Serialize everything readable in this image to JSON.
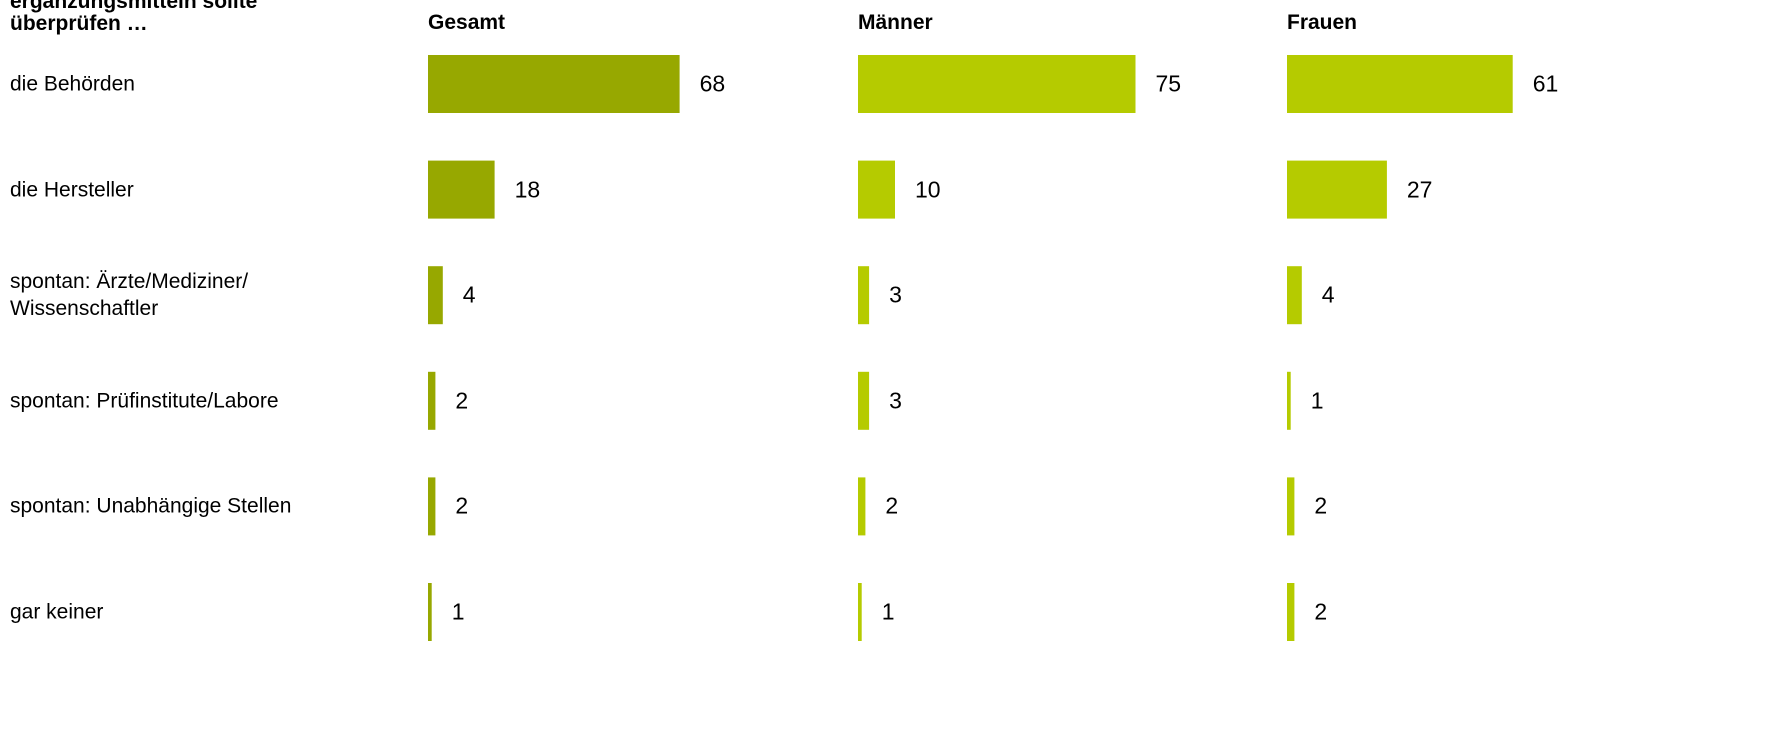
{
  "chart_data": {
    "type": "bar",
    "orientation": "horizontal",
    "title": "ergänzungsmitteln sollte\nüberprüfen …",
    "categories": [
      "die Behörden",
      "die Hersteller",
      "spontan: Ärzte/Mediziner/\nWissenschaftler",
      "spontan: Prüfinstitute/Labore",
      "spontan: Unabhängige Stellen",
      "gar keiner"
    ],
    "series": [
      {
        "name": "Gesamt",
        "color": "#97a800",
        "values": [
          68,
          18,
          4,
          2,
          2,
          1
        ]
      },
      {
        "name": "Männer",
        "color": "#b5cb00",
        "values": [
          75,
          10,
          3,
          3,
          2,
          1
        ]
      },
      {
        "name": "Frauen",
        "color": "#b5cb00",
        "values": [
          61,
          27,
          4,
          1,
          2,
          2
        ]
      }
    ]
  }
}
